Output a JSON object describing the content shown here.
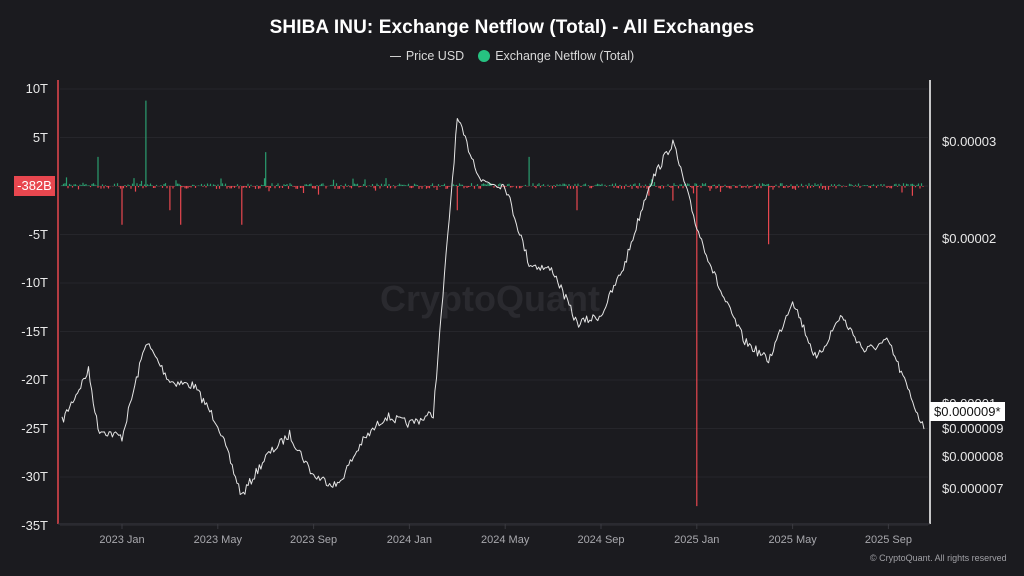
{
  "title": "SHIBA INU: Exchange Netflow (Total) - All Exchanges",
  "legend": [
    {
      "label": "Price USD",
      "marker": "line",
      "color": "#cfcfcf"
    },
    {
      "label": "Exchange Netflow (Total)",
      "marker": "dot",
      "color": "#26c281"
    }
  ],
  "watermark": "CryptoQuant",
  "copyright": "© CryptoQuant. All rights reserved",
  "colors": {
    "background": "#1b1b1f",
    "grid": "#26262b",
    "positive": "#2a9d6f",
    "negative": "#e8474f",
    "price": "#e6e6e6",
    "left_axis": "#e8474f",
    "right_axis": "#ffffff"
  },
  "badges": {
    "netflow_current": "-382B",
    "price_current": "$0.000009*"
  },
  "chart_data": {
    "type": "line+bar",
    "title": "SHIBA INU: Exchange Netflow (Total) - All Exchanges",
    "x_ticks": [
      "2023 Jan",
      "2023 May",
      "2023 Sep",
      "2024 Jan",
      "2024 May",
      "2024 Sep",
      "2025 Jan",
      "2025 May",
      "2025 Sep"
    ],
    "x_range": [
      "2022 Nov",
      "2025 Oct"
    ],
    "left_axis": {
      "label": "Exchange Netflow (Total)",
      "ticks": [
        "10T",
        "5T",
        "0",
        "-5T",
        "-10T",
        "-15T",
        "-20T",
        "-25T",
        "-30T",
        "-35T"
      ],
      "visible_tick_labels": [
        "10T",
        "5T",
        "-5T",
        "-10T",
        "-15T",
        "-20T",
        "-25T",
        "-30T",
        "-35T"
      ],
      "range": [
        -35,
        10
      ],
      "unit": "T"
    },
    "right_axis": {
      "label": "Price USD",
      "ticks": [
        "$0.00003",
        "$0.00002",
        "$0.00001",
        "$0.000009",
        "$0.000008",
        "$0.000007"
      ],
      "scale": "log"
    },
    "series": [
      {
        "name": "Price USD",
        "type": "line",
        "axis": "right",
        "points": [
          [
            "2022 Nov",
            9.3e-06
          ],
          [
            "2022 Dec early",
            1.15e-05
          ],
          [
            "2022 Dec",
            9e-06
          ],
          [
            "2023 Jan",
            8.7e-06
          ],
          [
            "2023 Feb",
            1.3e-05
          ],
          [
            "2023 Mar",
            1.1e-05
          ],
          [
            "2023 Apr",
            1.08e-05
          ],
          [
            "2023 May",
            9.2e-06
          ],
          [
            "2023 Jun",
            6.8e-06
          ],
          [
            "2023 Jul",
            8e-06
          ],
          [
            "2023 Aug",
            8.8e-06
          ],
          [
            "2023 Sep",
            7.4e-06
          ],
          [
            "2023 Oct",
            7.1e-06
          ],
          [
            "2023 Nov",
            8.5e-06
          ],
          [
            "2023 Dec",
            9.5e-06
          ],
          [
            "2024 Jan",
            9.2e-06
          ],
          [
            "2024 Feb",
            9.6e-06
          ],
          [
            "2024 Mar",
            3.3e-05
          ],
          [
            "2024 Apr",
            2.55e-05
          ],
          [
            "2024 May",
            2.5e-05
          ],
          [
            "2024 Jun",
            1.8e-05
          ],
          [
            "2024 Jul",
            1.75e-05
          ],
          [
            "2024 Aug",
            1.4e-05
          ],
          [
            "2024 Sep",
            1.45e-05
          ],
          [
            "2024 Oct",
            1.8e-05
          ],
          [
            "2024 Nov",
            2.5e-05
          ],
          [
            "2024 Dec",
            3e-05
          ],
          [
            "2025 Jan",
            2.1e-05
          ],
          [
            "2025 Feb",
            1.6e-05
          ],
          [
            "2025 Mar",
            1.3e-05
          ],
          [
            "2025 Apr",
            1.2e-05
          ],
          [
            "2025 May",
            1.55e-05
          ],
          [
            "2025 Jun",
            1.2e-05
          ],
          [
            "2025 Jul",
            1.45e-05
          ],
          [
            "2025 Aug",
            1.25e-05
          ],
          [
            "2025 Sep",
            1.3e-05
          ],
          [
            "2025 Oct",
            9e-06
          ]
        ]
      },
      {
        "name": "Exchange Netflow (Total)",
        "type": "bar",
        "axis": "left",
        "unit": "T",
        "notable_values": [
          {
            "x": "2022 Dec",
            "value": 3.0
          },
          {
            "x": "2023 Jan",
            "value": -4.0
          },
          {
            "x": "2023 Feb",
            "value": 8.8
          },
          {
            "x": "2023 Mar",
            "value": -2.5
          },
          {
            "x": "2023 Mar late",
            "value": -4.0
          },
          {
            "x": "2023 Jun",
            "value": -4.0
          },
          {
            "x": "2023 Jul",
            "value": 3.5
          },
          {
            "x": "2024 Mar",
            "value": -2.5
          },
          {
            "x": "2024 Jun",
            "value": 3.0
          },
          {
            "x": "2024 Aug",
            "value": -2.5
          },
          {
            "x": "2024 Nov",
            "value": -1.0
          },
          {
            "x": "2024 Dec",
            "value": -1.5
          },
          {
            "x": "2025 Jan",
            "value": -33.0
          },
          {
            "x": "2025 Apr",
            "value": -6.0
          },
          {
            "x": "2025 Oct",
            "value": -1.0
          }
        ],
        "last_value": "-382B"
      }
    ]
  }
}
